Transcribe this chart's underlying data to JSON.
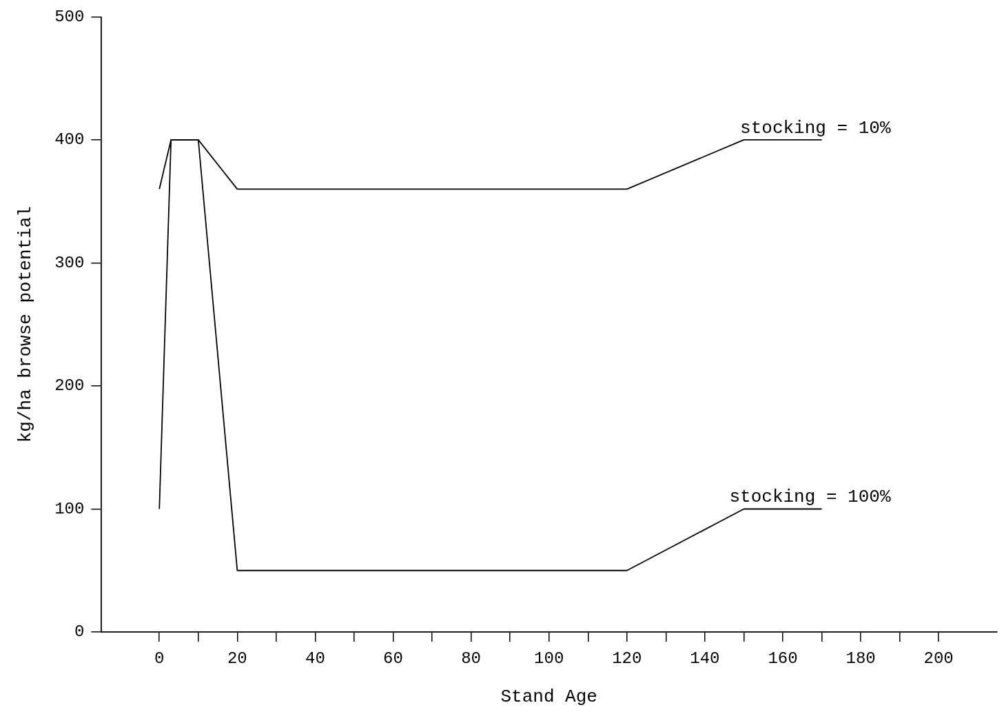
{
  "chart_data": {
    "type": "line",
    "xlabel": "Stand Age",
    "ylabel": "kg/ha browse potential",
    "xlim": [
      -15,
      215
    ],
    "ylim": [
      0,
      500
    ],
    "xticks": [
      0,
      {
        "value": 10,
        "label": null
      },
      20,
      {
        "value": 30,
        "label": null
      },
      40,
      {
        "value": 50,
        "label": null
      },
      60,
      {
        "value": 70,
        "label": null
      },
      80,
      {
        "value": 90,
        "label": null
      },
      100,
      {
        "value": 110,
        "label": null
      },
      120,
      {
        "value": 130,
        "label": null
      },
      140,
      {
        "value": 150,
        "label": null
      },
      160,
      {
        "value": 170,
        "label": null
      },
      180,
      {
        "value": 190,
        "label": null
      },
      200
    ],
    "yticks": [
      0,
      100,
      200,
      300,
      400,
      500
    ],
    "grid": false,
    "series": [
      {
        "name": "stocking = 10%",
        "color": "#000000",
        "x": [
          0,
          3,
          10,
          20,
          120,
          150,
          170
        ],
        "values": [
          360,
          400,
          400,
          360,
          360,
          400,
          400
        ]
      },
      {
        "name": "stocking = 100%",
        "color": "#000000",
        "x": [
          0,
          3,
          10,
          20,
          120,
          150,
          170
        ],
        "values": [
          100,
          400,
          400,
          50,
          50,
          100,
          100
        ]
      }
    ]
  }
}
